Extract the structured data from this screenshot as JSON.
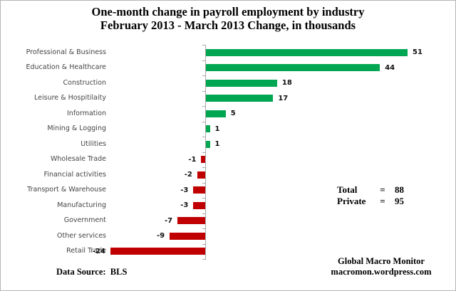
{
  "title": {
    "line1": "One-month change in payroll employment by industry",
    "line2": "February 2013 - March 2013  Change, in thousands"
  },
  "chart_data": {
    "type": "bar",
    "orientation": "horizontal",
    "categories": [
      "Professional & Business",
      "Education & Healthcare",
      "Construction",
      "Leisure & Hospitilaity",
      "Information",
      "Mining & Logging",
      "Utilities",
      "Wholesale Trade",
      "Financial activities",
      "Transport & Warehouse",
      "Manufacturing",
      "Government",
      "Other services",
      "Retail Trade"
    ],
    "values": [
      51,
      44,
      18,
      17,
      5,
      1,
      1,
      -1,
      -2,
      -3,
      -3,
      -7,
      -9,
      -24
    ],
    "title": "One-month change in payroll employment by industry",
    "subtitle": "February 2013 - March 2013  Change, in thousands",
    "xlabel": "",
    "ylabel": "",
    "xlim": [
      -26,
      55
    ],
    "grid": false,
    "legend": "none",
    "positive_color": "#00A651",
    "negative_color": "#C00000",
    "axis_color": "#A8A8A8"
  },
  "totals": {
    "rows": [
      {
        "label": "Total",
        "eq": "=",
        "value": "88"
      },
      {
        "label": "Private",
        "eq": "=",
        "value": "95"
      }
    ]
  },
  "notes": {
    "source": "Data Source:  BLS",
    "credit_line1": "Global Macro Monitor",
    "credit_line2": "macromon.wordpress.com"
  }
}
